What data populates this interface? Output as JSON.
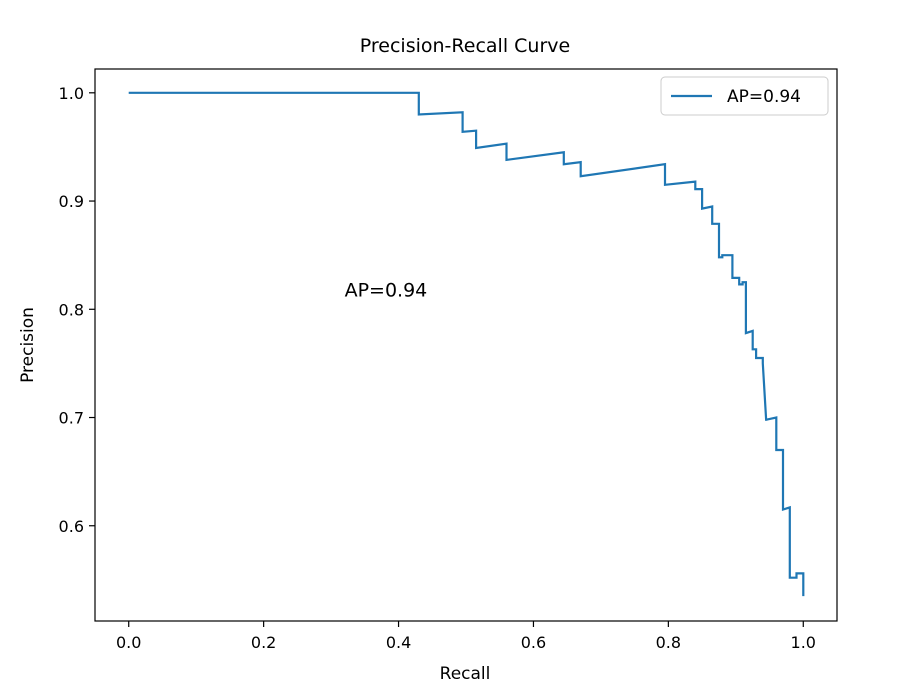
{
  "chart_data": {
    "type": "line",
    "title": "Precision-Recall Curve",
    "xlabel": "Recall",
    "ylabel": "Precision",
    "xlim": [
      -0.05,
      1.05
    ],
    "ylim": [
      0.512,
      1.022
    ],
    "xticks": [
      0.0,
      0.2,
      0.4,
      0.6,
      0.8,
      1.0
    ],
    "xtick_labels": [
      "0.0",
      "0.2",
      "0.4",
      "0.6",
      "0.8",
      "1.0"
    ],
    "yticks": [
      0.6,
      0.7,
      0.8,
      0.9,
      1.0
    ],
    "ytick_labels": [
      "0.6",
      "0.7",
      "0.8",
      "0.9",
      "1.0"
    ],
    "grid": false,
    "legend_position": "top-right",
    "annotation": {
      "text": "AP=0.94",
      "x": 0.32,
      "y": 0.81,
      "color": "#ff0000"
    },
    "series": [
      {
        "name": "AP=0.94",
        "color": "#1f77b4",
        "x": [
          0.0,
          0.43,
          0.43,
          0.495,
          0.495,
          0.515,
          0.515,
          0.56,
          0.56,
          0.645,
          0.645,
          0.67,
          0.67,
          0.795,
          0.795,
          0.84,
          0.84,
          0.85,
          0.85,
          0.865,
          0.865,
          0.875,
          0.875,
          0.88,
          0.88,
          0.895,
          0.895,
          0.905,
          0.905,
          0.91,
          0.91,
          0.915,
          0.915,
          0.925,
          0.925,
          0.93,
          0.93,
          0.94,
          0.94,
          0.945,
          0.945,
          0.96,
          0.96,
          0.97,
          0.97,
          0.98,
          0.98,
          0.99,
          0.99,
          1.0,
          1.0
        ],
        "y": [
          1.0,
          1.0,
          0.98,
          0.982,
          0.964,
          0.965,
          0.949,
          0.953,
          0.938,
          0.945,
          0.934,
          0.936,
          0.923,
          0.934,
          0.915,
          0.918,
          0.911,
          0.911,
          0.893,
          0.895,
          0.879,
          0.879,
          0.848,
          0.848,
          0.85,
          0.85,
          0.829,
          0.829,
          0.823,
          0.823,
          0.825,
          0.825,
          0.778,
          0.78,
          0.763,
          0.763,
          0.755,
          0.755,
          0.75,
          0.697,
          0.698,
          0.7,
          0.67,
          0.67,
          0.615,
          0.617,
          0.552,
          0.552,
          0.556,
          0.556,
          0.535
        ]
      }
    ]
  }
}
